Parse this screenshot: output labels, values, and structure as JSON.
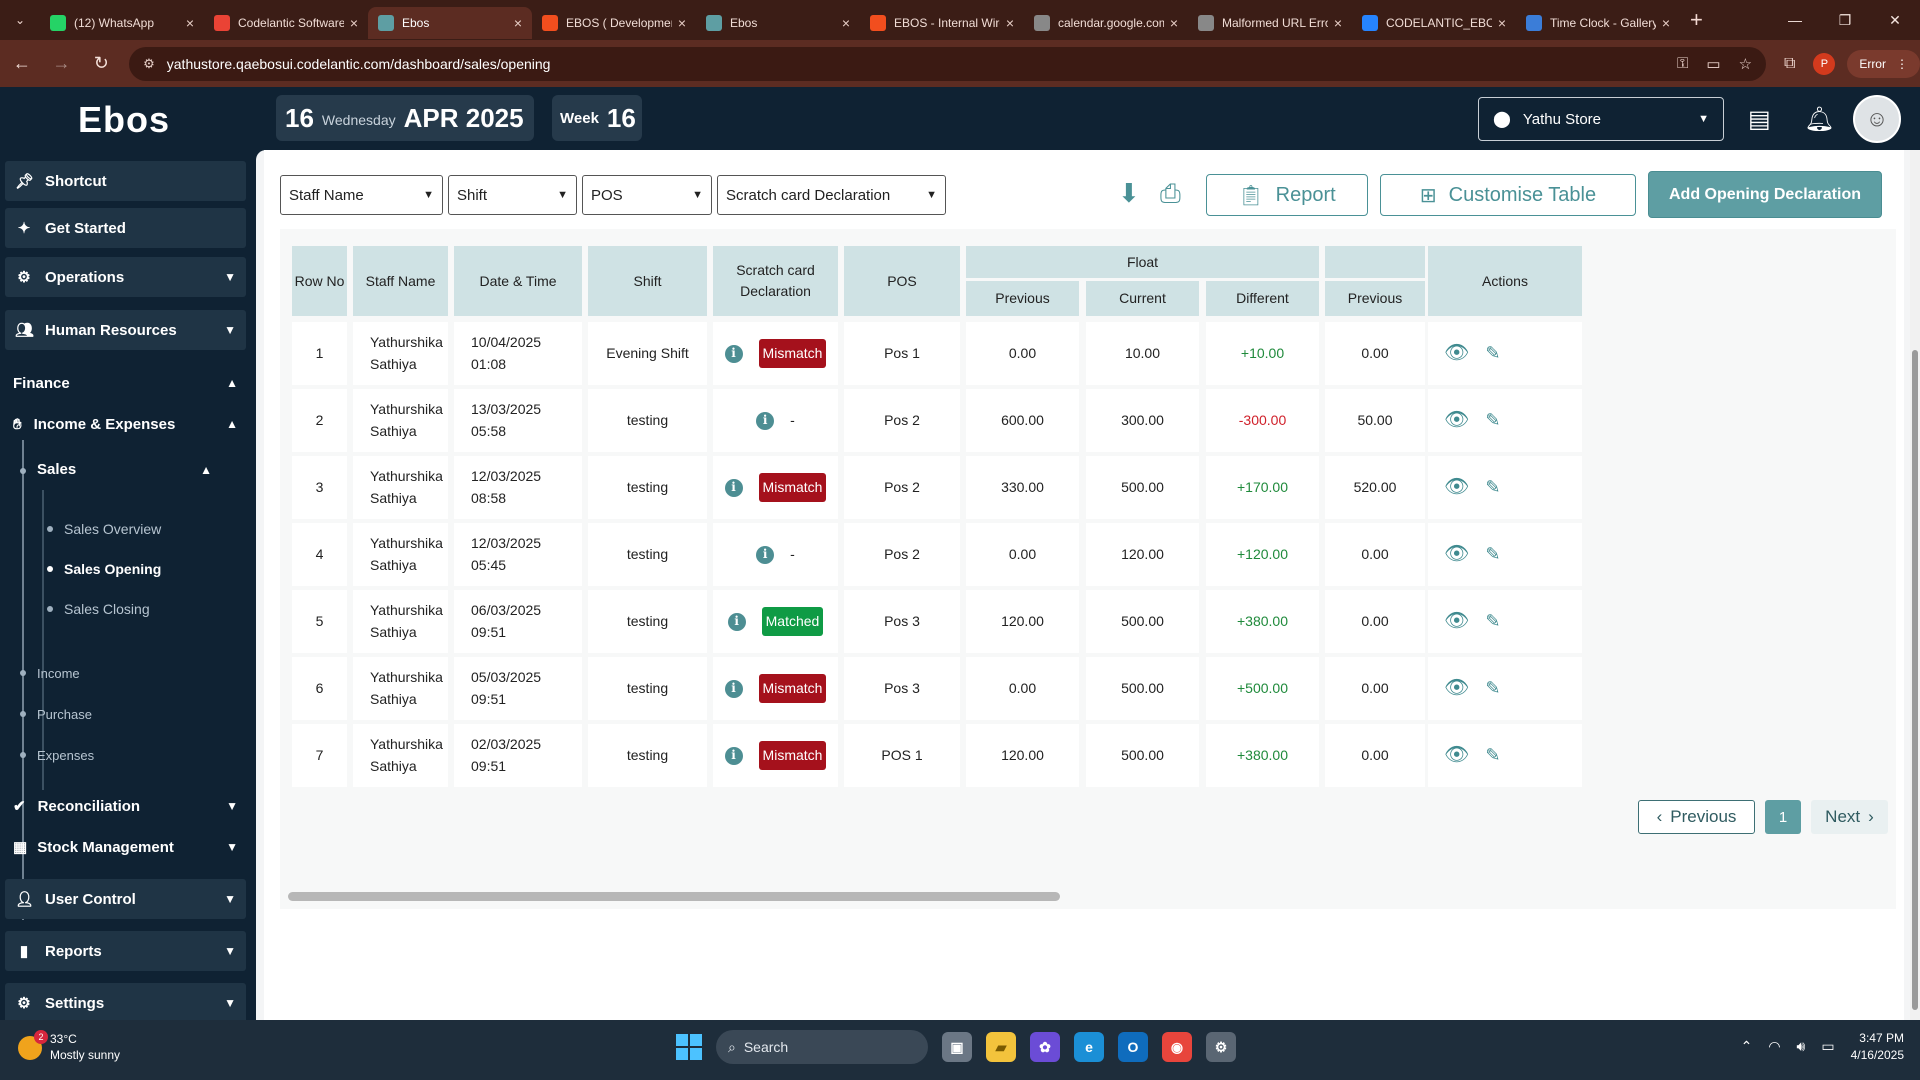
{
  "browser": {
    "tabs": [
      {
        "title": "(12) WhatsApp",
        "favicon": "whatsapp-icon",
        "color": "#25d366",
        "active": false
      },
      {
        "title": "Codelantic Software",
        "favicon": "gmail-icon",
        "color": "#ea4335",
        "active": false
      },
      {
        "title": "Ebos",
        "favicon": "ebos-icon",
        "color": "#5e9ea3",
        "active": true
      },
      {
        "title": "EBOS ( Development )",
        "favicon": "figma-icon",
        "color": "#f24e1e",
        "active": false
      },
      {
        "title": "Ebos",
        "favicon": "ebos-icon",
        "color": "#5e9ea3",
        "active": false
      },
      {
        "title": "EBOS - Internal Wireframe",
        "favicon": "figma-icon",
        "color": "#f24e1e",
        "active": false
      },
      {
        "title": "calendar.google.com",
        "favicon": "globe-icon",
        "color": "#888888",
        "active": false
      },
      {
        "title": "Malformed URL Error",
        "favicon": "globe-icon",
        "color": "#888888",
        "active": false
      },
      {
        "title": "CODELANTIC_EBOS",
        "favicon": "jira-icon",
        "color": "#2684ff",
        "active": false
      },
      {
        "title": "Time Clock - Gallery",
        "favicon": "timeclock-icon",
        "color": "#3b7dd8",
        "active": false
      }
    ],
    "url": "yathustore.qaebosui.codelantic.com/dashboard/sales/opening",
    "profile_initial": "P",
    "error_label": "Error"
  },
  "header": {
    "logo": "Ebos",
    "date_day": "16",
    "date_weekday": "Wednesday",
    "date_month_year": "APR 2025",
    "week_label": "Week",
    "week_number": "16",
    "store": "Yathu Store"
  },
  "sidebar": {
    "shortcut": "Shortcut",
    "get_started": "Get Started",
    "operations": "Operations",
    "human_resources": "Human Resources",
    "finance": "Finance",
    "income_expenses": "Income & Expenses",
    "sales": "Sales",
    "sales_overview": "Sales Overview",
    "sales_opening": "Sales Opening",
    "sales_closing": "Sales Closing",
    "income": "Income",
    "purchase": "Purchase",
    "expenses": "Expenses",
    "reconciliation": "Reconciliation",
    "stock_management": "Stock Management",
    "user_control": "User Control",
    "reports": "Reports",
    "settings": "Settings"
  },
  "toolbar": {
    "filter_staff": "Staff Name",
    "filter_shift": "Shift",
    "filter_pos": "POS",
    "filter_scratch": "Scratch card Declaration",
    "report_label": "Report",
    "customise_label": "Customise Table",
    "add_label": "Add Opening Declaration"
  },
  "table": {
    "headers": {
      "row_no": "Row No",
      "staff_name": "Staff Name",
      "date_time": "Date & Time",
      "shift": "Shift",
      "scratch_card": "Scratch card Declaration",
      "pos": "POS",
      "float": "Float",
      "float_previous": "Previous",
      "float_current": "Current",
      "float_different": "Different",
      "next_previous": "Previous",
      "actions": "Actions"
    },
    "rows": [
      {
        "no": "1",
        "staff": "Yathurshika Sathiya",
        "date": "10/04/2025",
        "time": "01:08",
        "shift": "Evening Shift",
        "scratch": "Mismatch",
        "scratch_type": "mismatch",
        "pos": "Pos 1",
        "prev": "0.00",
        "curr": "10.00",
        "diff": "+10.00",
        "diff_type": "pos",
        "prev2": "0.00"
      },
      {
        "no": "2",
        "staff": "Yathurshika Sathiya",
        "date": "13/03/2025",
        "time": "05:58",
        "shift": "testing",
        "scratch": "-",
        "scratch_type": "none",
        "pos": "Pos 2",
        "prev": "600.00",
        "curr": "300.00",
        "diff": "-300.00",
        "diff_type": "neg",
        "prev2": "50.00"
      },
      {
        "no": "3",
        "staff": "Yathurshika Sathiya",
        "date": "12/03/2025",
        "time": "08:58",
        "shift": "testing",
        "scratch": "Mismatch",
        "scratch_type": "mismatch",
        "pos": "Pos 2",
        "prev": "330.00",
        "curr": "500.00",
        "diff": "+170.00",
        "diff_type": "pos",
        "prev2": "520.00"
      },
      {
        "no": "4",
        "staff": "Yathurshika Sathiya",
        "date": "12/03/2025",
        "time": "05:45",
        "shift": "testing",
        "scratch": "-",
        "scratch_type": "none",
        "pos": "Pos 2",
        "prev": "0.00",
        "curr": "120.00",
        "diff": "+120.00",
        "diff_type": "pos",
        "prev2": "0.00"
      },
      {
        "no": "5",
        "staff": "Yathurshika Sathiya",
        "date": "06/03/2025",
        "time": "09:51",
        "shift": "testing",
        "scratch": "Matched",
        "scratch_type": "matched",
        "pos": "Pos 3",
        "prev": "120.00",
        "curr": "500.00",
        "diff": "+380.00",
        "diff_type": "pos",
        "prev2": "0.00"
      },
      {
        "no": "6",
        "staff": "Yathurshika Sathiya",
        "date": "05/03/2025",
        "time": "09:51",
        "shift": "testing",
        "scratch": "Mismatch",
        "scratch_type": "mismatch",
        "pos": "Pos 3",
        "prev": "0.00",
        "curr": "500.00",
        "diff": "+500.00",
        "diff_type": "pos",
        "prev2": "0.00"
      },
      {
        "no": "7",
        "staff": "Yathurshika Sathiya",
        "date": "02/03/2025",
        "time": "09:51",
        "shift": "testing",
        "scratch": "Mismatch",
        "scratch_type": "mismatch",
        "pos": "POS 1",
        "prev": "120.00",
        "curr": "500.00",
        "diff": "+380.00",
        "diff_type": "pos",
        "prev2": "0.00"
      }
    ]
  },
  "pagination": {
    "previous": "Previous",
    "page": "1",
    "next": "Next"
  },
  "taskbar": {
    "temperature": "33°C",
    "weather": "Mostly sunny",
    "weather_badge": "2",
    "search": "Search",
    "time": "3:47 PM",
    "date": "4/16/2025"
  },
  "colors": {
    "accent": "#5e9ea3",
    "mismatch": "#a5111c",
    "matched": "#0f9b45",
    "positive": "#1f8a3b",
    "negative": "#d0202a"
  }
}
